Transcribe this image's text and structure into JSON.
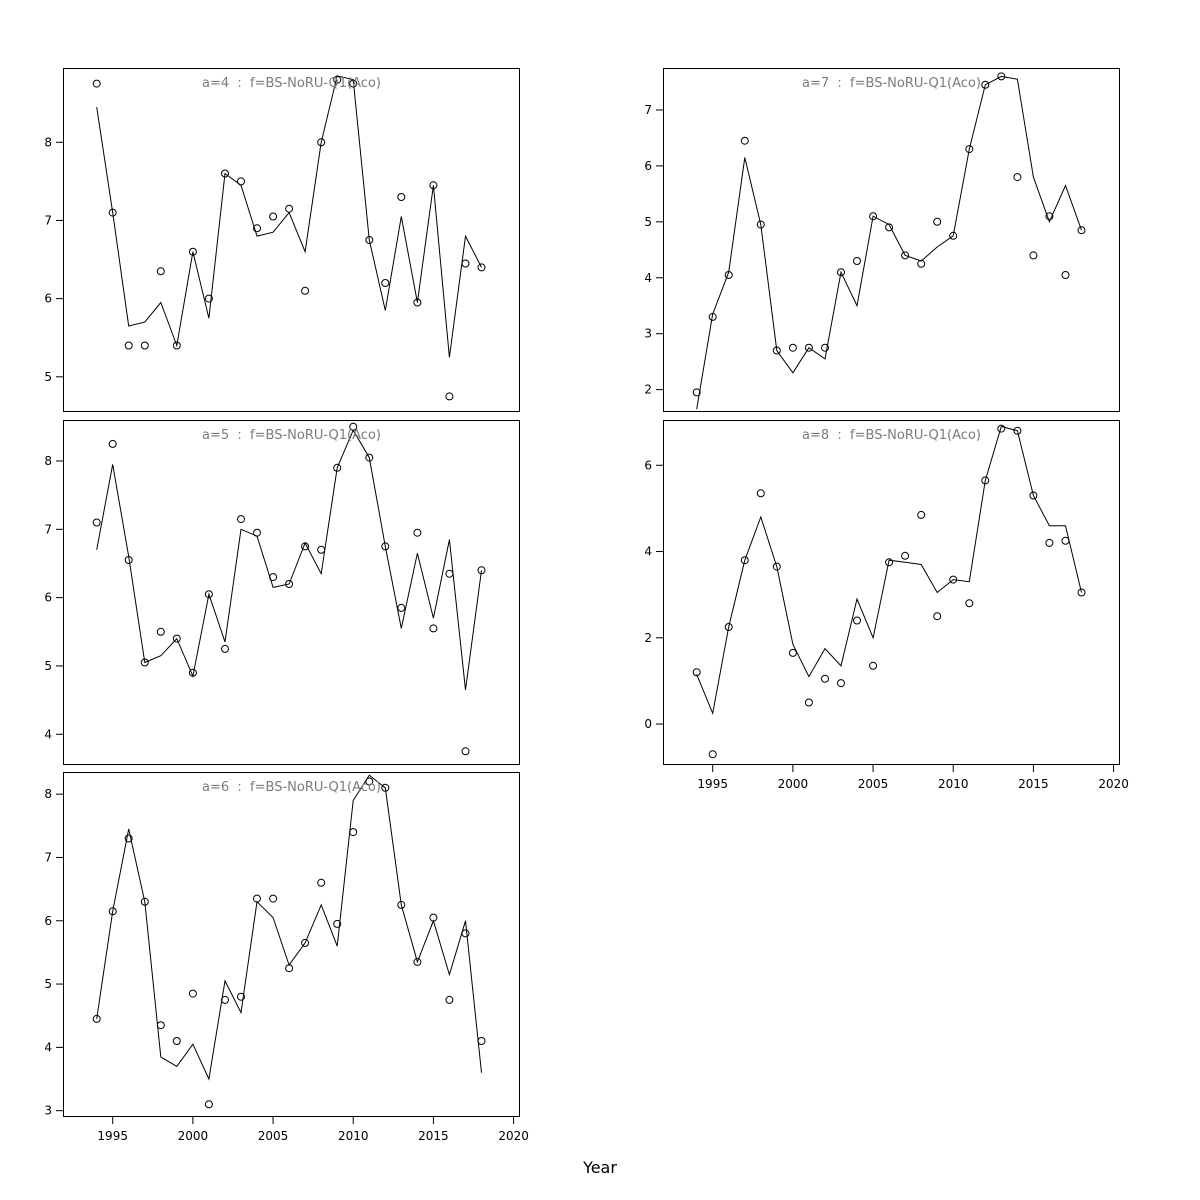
{
  "figure": {
    "xlabel": "Year",
    "background": "#ffffff",
    "line_color": "#000000",
    "point_color": "#000000",
    "title_color": "#7b7b7b"
  },
  "chart_data": [
    {
      "type": "line",
      "title": "a=4  :  f=BS-NoRU-Q1(Aco)",
      "xlabel": "Year",
      "ylabel": "",
      "grid": false,
      "xlim": [
        1991.9,
        2020.4
      ],
      "ylim": [
        4.55,
        8.95
      ],
      "xticks": [
        1995,
        2000,
        2005,
        2010,
        2015,
        2020
      ],
      "yticks": [
        5,
        6,
        7,
        8
      ],
      "show_x_axis": false,
      "x": [
        1994,
        1995,
        1996,
        1997,
        1998,
        1999,
        2000,
        2001,
        2002,
        2003,
        2004,
        2005,
        2006,
        2007,
        2008,
        2009,
        2010,
        2011,
        2012,
        2013,
        2014,
        2015,
        2016,
        2017,
        2018
      ],
      "series": [
        {
          "name": "fitted-line",
          "style": "line",
          "values": [
            8.45,
            7.1,
            5.65,
            5.7,
            5.95,
            5.4,
            6.6,
            5.75,
            7.6,
            7.45,
            6.8,
            6.85,
            7.1,
            6.6,
            8.0,
            8.85,
            8.8,
            6.75,
            5.85,
            7.05,
            5.95,
            7.45,
            5.25,
            6.8,
            6.4
          ]
        },
        {
          "name": "observed-points",
          "style": "points",
          "values": [
            8.75,
            7.1,
            5.4,
            5.4,
            6.35,
            5.4,
            6.6,
            6.0,
            7.6,
            7.5,
            6.9,
            7.05,
            7.15,
            6.1,
            8.0,
            8.8,
            8.75,
            6.75,
            6.2,
            7.3,
            5.95,
            7.45,
            4.75,
            6.45,
            6.4
          ]
        }
      ]
    },
    {
      "type": "line",
      "title": "a=5  :  f=BS-NoRU-Q1(Aco)",
      "xlabel": "Year",
      "ylabel": "",
      "grid": false,
      "xlim": [
        1991.9,
        2020.4
      ],
      "ylim": [
        3.55,
        8.6
      ],
      "xticks": [
        1995,
        2000,
        2005,
        2010,
        2015,
        2020
      ],
      "yticks": [
        4,
        5,
        6,
        7,
        8
      ],
      "show_x_axis": false,
      "x": [
        1994,
        1995,
        1996,
        1997,
        1998,
        1999,
        2000,
        2001,
        2002,
        2003,
        2004,
        2005,
        2006,
        2007,
        2008,
        2009,
        2010,
        2011,
        2012,
        2013,
        2014,
        2015,
        2016,
        2017,
        2018
      ],
      "series": [
        {
          "name": "fitted-line",
          "style": "line",
          "values": [
            6.7,
            7.95,
            6.6,
            5.05,
            5.15,
            5.4,
            4.85,
            6.05,
            5.35,
            7.0,
            6.9,
            6.15,
            6.2,
            6.8,
            6.35,
            7.9,
            8.45,
            8.05,
            6.75,
            5.55,
            6.65,
            5.7,
            6.85,
            4.65,
            6.4
          ]
        },
        {
          "name": "observed-points",
          "style": "points",
          "values": [
            7.1,
            8.25,
            6.55,
            5.05,
            5.5,
            5.4,
            4.9,
            6.05,
            5.25,
            7.15,
            6.95,
            6.3,
            6.2,
            6.75,
            6.7,
            7.9,
            8.5,
            8.05,
            6.75,
            5.85,
            6.95,
            5.55,
            6.35,
            3.75,
            6.4
          ]
        }
      ]
    },
    {
      "type": "line",
      "title": "a=6  :  f=BS-NoRU-Q1(Aco)",
      "xlabel": "Year",
      "ylabel": "",
      "grid": false,
      "xlim": [
        1991.9,
        2020.4
      ],
      "ylim": [
        2.9,
        8.35
      ],
      "xticks": [
        1995,
        2000,
        2005,
        2010,
        2015,
        2020
      ],
      "yticks": [
        3,
        4,
        5,
        6,
        7,
        8
      ],
      "show_x_axis": true,
      "x": [
        1994,
        1995,
        1996,
        1997,
        1998,
        1999,
        2000,
        2001,
        2002,
        2003,
        2004,
        2005,
        2006,
        2007,
        2008,
        2009,
        2010,
        2011,
        2012,
        2013,
        2014,
        2015,
        2016,
        2017,
        2018
      ],
      "series": [
        {
          "name": "fitted-line",
          "style": "line",
          "values": [
            4.45,
            6.15,
            7.45,
            6.3,
            3.85,
            3.7,
            4.05,
            3.5,
            5.05,
            4.55,
            6.3,
            6.05,
            5.3,
            5.65,
            6.25,
            5.6,
            7.9,
            8.3,
            8.1,
            6.25,
            5.35,
            6.0,
            5.15,
            6.0,
            3.6
          ]
        },
        {
          "name": "observed-points",
          "style": "points",
          "values": [
            4.45,
            6.15,
            7.3,
            6.3,
            4.35,
            4.1,
            4.85,
            3.1,
            4.75,
            4.8,
            6.35,
            6.35,
            5.25,
            5.65,
            6.6,
            5.95,
            7.4,
            8.2,
            8.1,
            6.25,
            5.35,
            6.05,
            4.75,
            5.8,
            4.1
          ]
        }
      ]
    },
    {
      "type": "line",
      "title": "a=7  :  f=BS-NoRU-Q1(Aco)",
      "xlabel": "Year",
      "ylabel": "",
      "grid": false,
      "xlim": [
        1991.9,
        2020.4
      ],
      "ylim": [
        1.6,
        7.75
      ],
      "xticks": [
        1995,
        2000,
        2005,
        2010,
        2015,
        2020
      ],
      "yticks": [
        2,
        3,
        4,
        5,
        6,
        7
      ],
      "show_x_axis": false,
      "x": [
        1994,
        1995,
        1996,
        1997,
        1998,
        1999,
        2000,
        2001,
        2002,
        2003,
        2004,
        2005,
        2006,
        2007,
        2008,
        2009,
        2010,
        2011,
        2012,
        2013,
        2014,
        2015,
        2016,
        2017,
        2018
      ],
      "series": [
        {
          "name": "fitted-line",
          "style": "line",
          "values": [
            1.65,
            3.35,
            4.1,
            6.15,
            4.95,
            2.7,
            2.3,
            2.75,
            2.55,
            4.1,
            3.5,
            5.1,
            4.95,
            4.4,
            4.3,
            4.55,
            4.75,
            6.3,
            7.45,
            7.6,
            7.55,
            5.8,
            5.0,
            5.65,
            4.85
          ]
        },
        {
          "name": "observed-points",
          "style": "points",
          "values": [
            1.95,
            3.3,
            4.05,
            6.45,
            4.95,
            2.7,
            2.75,
            2.75,
            2.75,
            4.1,
            4.3,
            5.1,
            4.9,
            4.4,
            4.25,
            5.0,
            4.75,
            6.3,
            7.45,
            7.6,
            5.8,
            4.4,
            5.1,
            4.05,
            4.85
          ]
        }
      ]
    },
    {
      "type": "line",
      "title": "a=8  :  f=BS-NoRU-Q1(Aco)",
      "xlabel": "Year",
      "ylabel": "",
      "grid": false,
      "xlim": [
        1991.9,
        2020.4
      ],
      "ylim": [
        -0.95,
        7.05
      ],
      "xticks": [
        1995,
        2000,
        2005,
        2010,
        2015,
        2020
      ],
      "yticks": [
        0,
        2,
        4,
        6
      ],
      "show_x_axis": true,
      "x": [
        1994,
        1995,
        1996,
        1997,
        1998,
        1999,
        2000,
        2001,
        2002,
        2003,
        2004,
        2005,
        2006,
        2007,
        2008,
        2009,
        2010,
        2011,
        2012,
        2013,
        2014,
        2015,
        2016,
        2017,
        2018
      ],
      "series": [
        {
          "name": "fitted-line",
          "style": "line",
          "values": [
            1.15,
            0.25,
            2.25,
            3.8,
            4.8,
            3.65,
            1.85,
            1.1,
            1.75,
            1.35,
            2.9,
            2.0,
            3.8,
            3.75,
            3.7,
            3.05,
            3.35,
            3.3,
            5.65,
            6.9,
            6.8,
            5.3,
            4.6,
            4.6,
            3.05
          ]
        },
        {
          "name": "observed-points",
          "style": "points",
          "values": [
            1.2,
            -0.7,
            2.25,
            3.8,
            5.35,
            3.65,
            1.65,
            0.5,
            1.05,
            0.95,
            2.4,
            1.35,
            3.75,
            3.9,
            4.85,
            2.5,
            3.35,
            2.8,
            5.65,
            6.85,
            6.8,
            5.3,
            4.2,
            4.25,
            3.05
          ]
        }
      ]
    }
  ]
}
